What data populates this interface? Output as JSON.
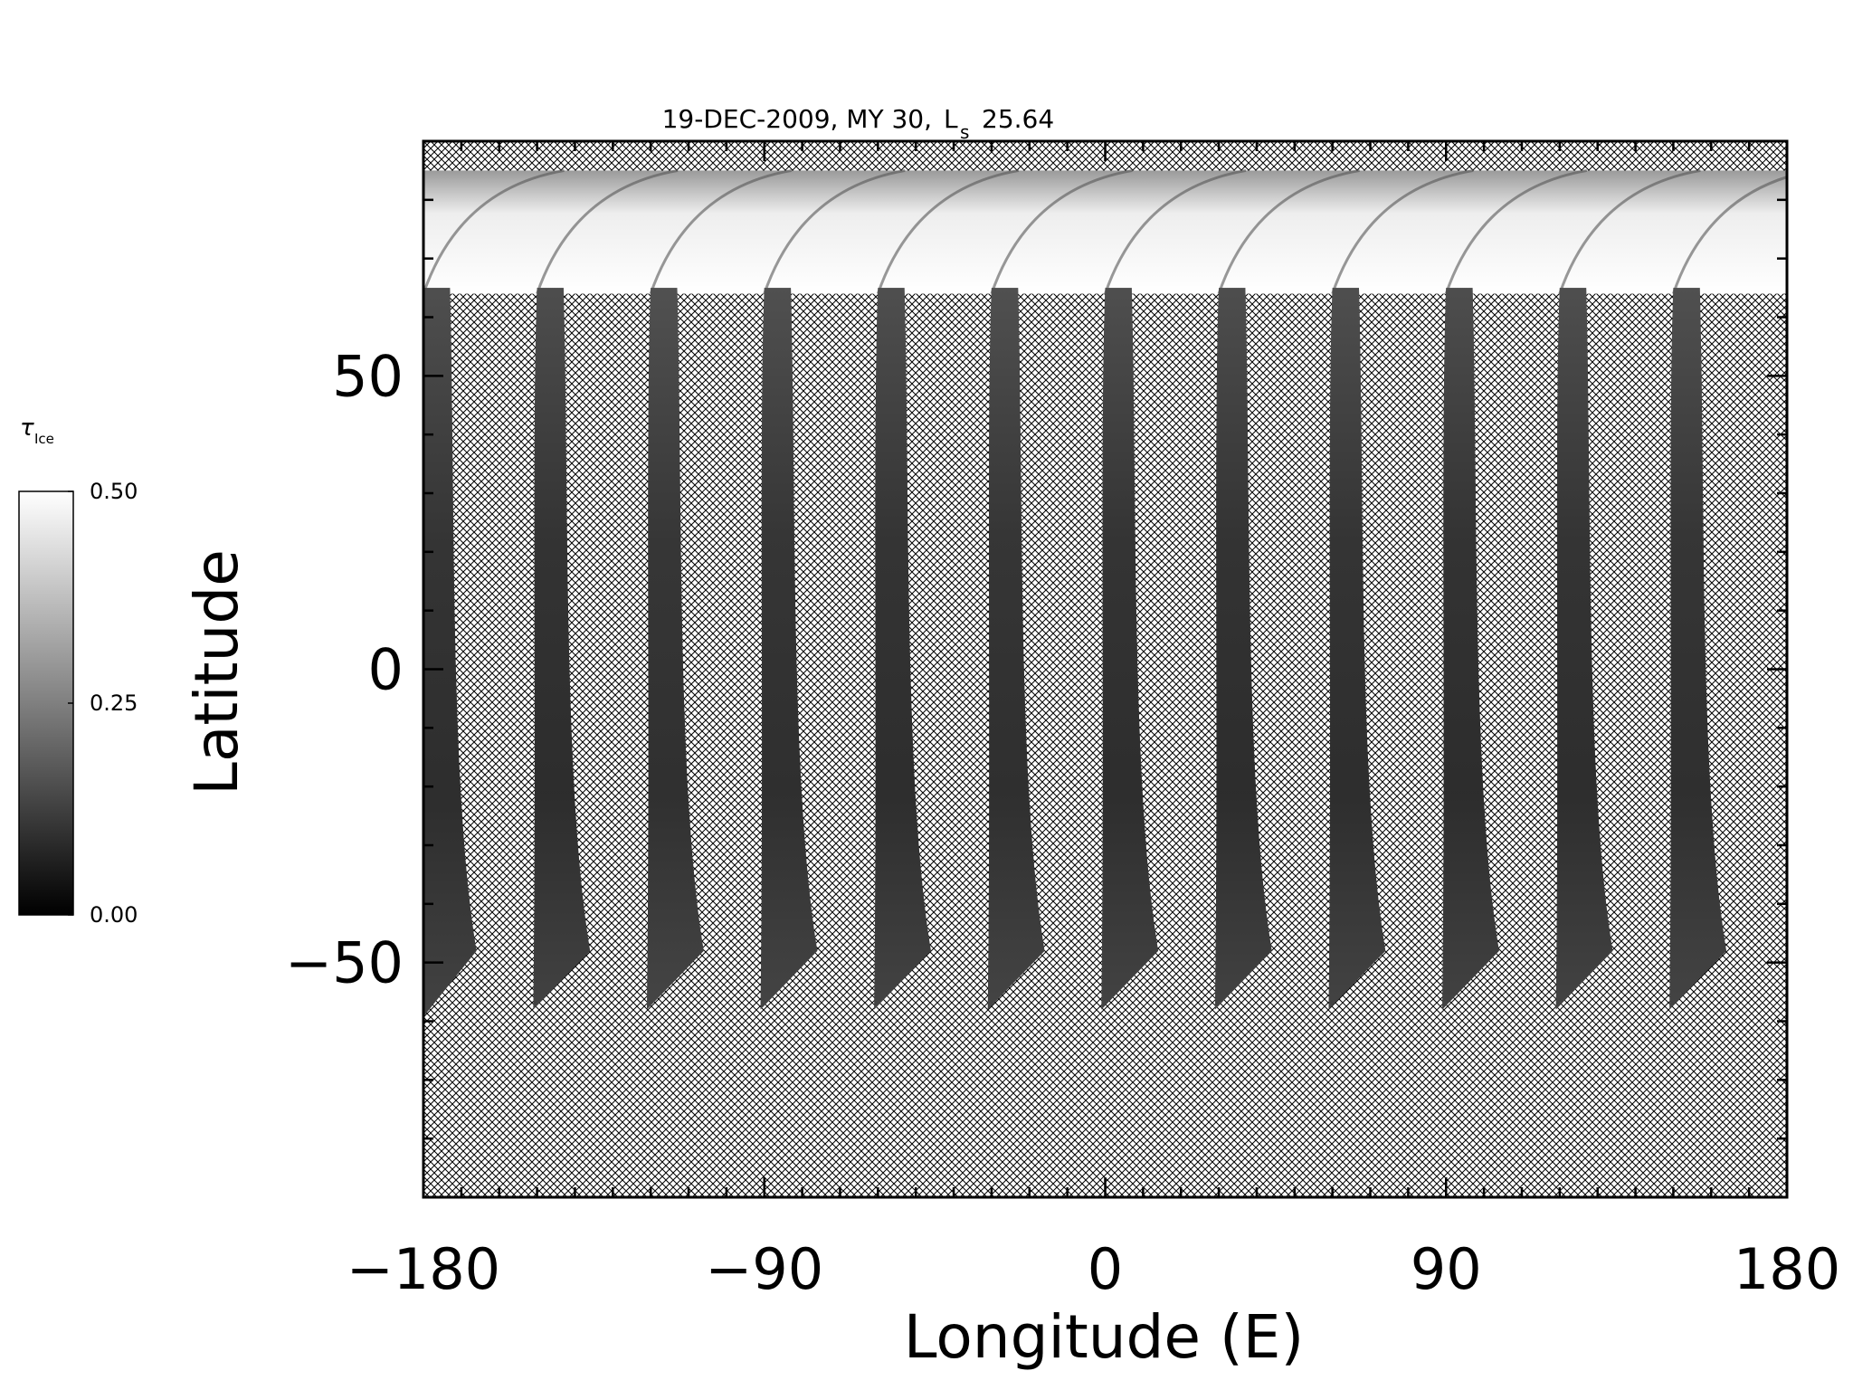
{
  "chart_data": {
    "type": "heatmap",
    "title_parts": {
      "date_mars_year": "19-DEC-2009, MY 30,",
      "ls_symbol": "L",
      "ls_subscript": "s",
      "ls_value": "25.64"
    },
    "xlabel": "Longitude (E)",
    "ylabel": "Latitude",
    "xlim": [
      -180,
      180
    ],
    "ylim": [
      -90,
      90
    ],
    "x_tick_labels": [
      "−180",
      "−90",
      "0",
      "90",
      "180"
    ],
    "x_tick_values": [
      -180,
      -90,
      0,
      90,
      180
    ],
    "y_tick_labels": [
      "−50",
      "0",
      "50"
    ],
    "y_tick_values": [
      -50,
      0,
      50
    ],
    "grid": false,
    "no_data_fill": "crosshatch",
    "colorbar": {
      "symbol": "τ",
      "subscript": "Ice",
      "tick_labels": [
        "0.50",
        "0.25",
        "0.00"
      ],
      "tick_values": [
        0.5,
        0.25,
        0.0
      ],
      "range": [
        0.0,
        0.5
      ],
      "colormap": "grayscale",
      "low_color": "#000000",
      "high_color": "#ffffff"
    },
    "swaths": [
      {
        "lon_north": -180,
        "lon_south": -171,
        "lat_north": 65,
        "lat_south": -60,
        "mean_opacity": 0.1
      },
      {
        "lon_north": -150,
        "lon_south": -141,
        "lat_north": 65,
        "lat_south": -58,
        "mean_opacity": 0.09
      },
      {
        "lon_north": -120,
        "lon_south": -111,
        "lat_north": 65,
        "lat_south": -58,
        "mean_opacity": 0.12
      },
      {
        "lon_north": -90,
        "lon_south": -81,
        "lat_north": 65,
        "lat_south": -58,
        "mean_opacity": 0.11
      },
      {
        "lon_north": -60,
        "lon_south": -51,
        "lat_north": 65,
        "lat_south": -58,
        "mean_opacity": 0.1
      },
      {
        "lon_north": -30,
        "lon_south": -21,
        "lat_north": 65,
        "lat_south": -58,
        "mean_opacity": 0.11
      },
      {
        "lon_north": 0,
        "lon_south": 9,
        "lat_north": 65,
        "lat_south": -58,
        "mean_opacity": 0.1
      },
      {
        "lon_north": 30,
        "lon_south": 39,
        "lat_north": 65,
        "lat_south": -58,
        "mean_opacity": 0.09
      },
      {
        "lon_north": 60,
        "lon_south": 69,
        "lat_north": 65,
        "lat_south": -58,
        "mean_opacity": 0.1
      },
      {
        "lon_north": 90,
        "lon_south": 99,
        "lat_north": 65,
        "lat_south": -58,
        "mean_opacity": 0.09
      },
      {
        "lon_north": 120,
        "lon_south": 129,
        "lat_north": 65,
        "lat_south": -58,
        "mean_opacity": 0.1
      },
      {
        "lon_north": 150,
        "lon_south": 159,
        "lat_north": 65,
        "lat_south": -58,
        "mean_opacity": 0.11
      }
    ],
    "north_cap_band": {
      "lat_top": 85,
      "lat_bottom": 64,
      "mean_opacity": 0.45
    }
  }
}
